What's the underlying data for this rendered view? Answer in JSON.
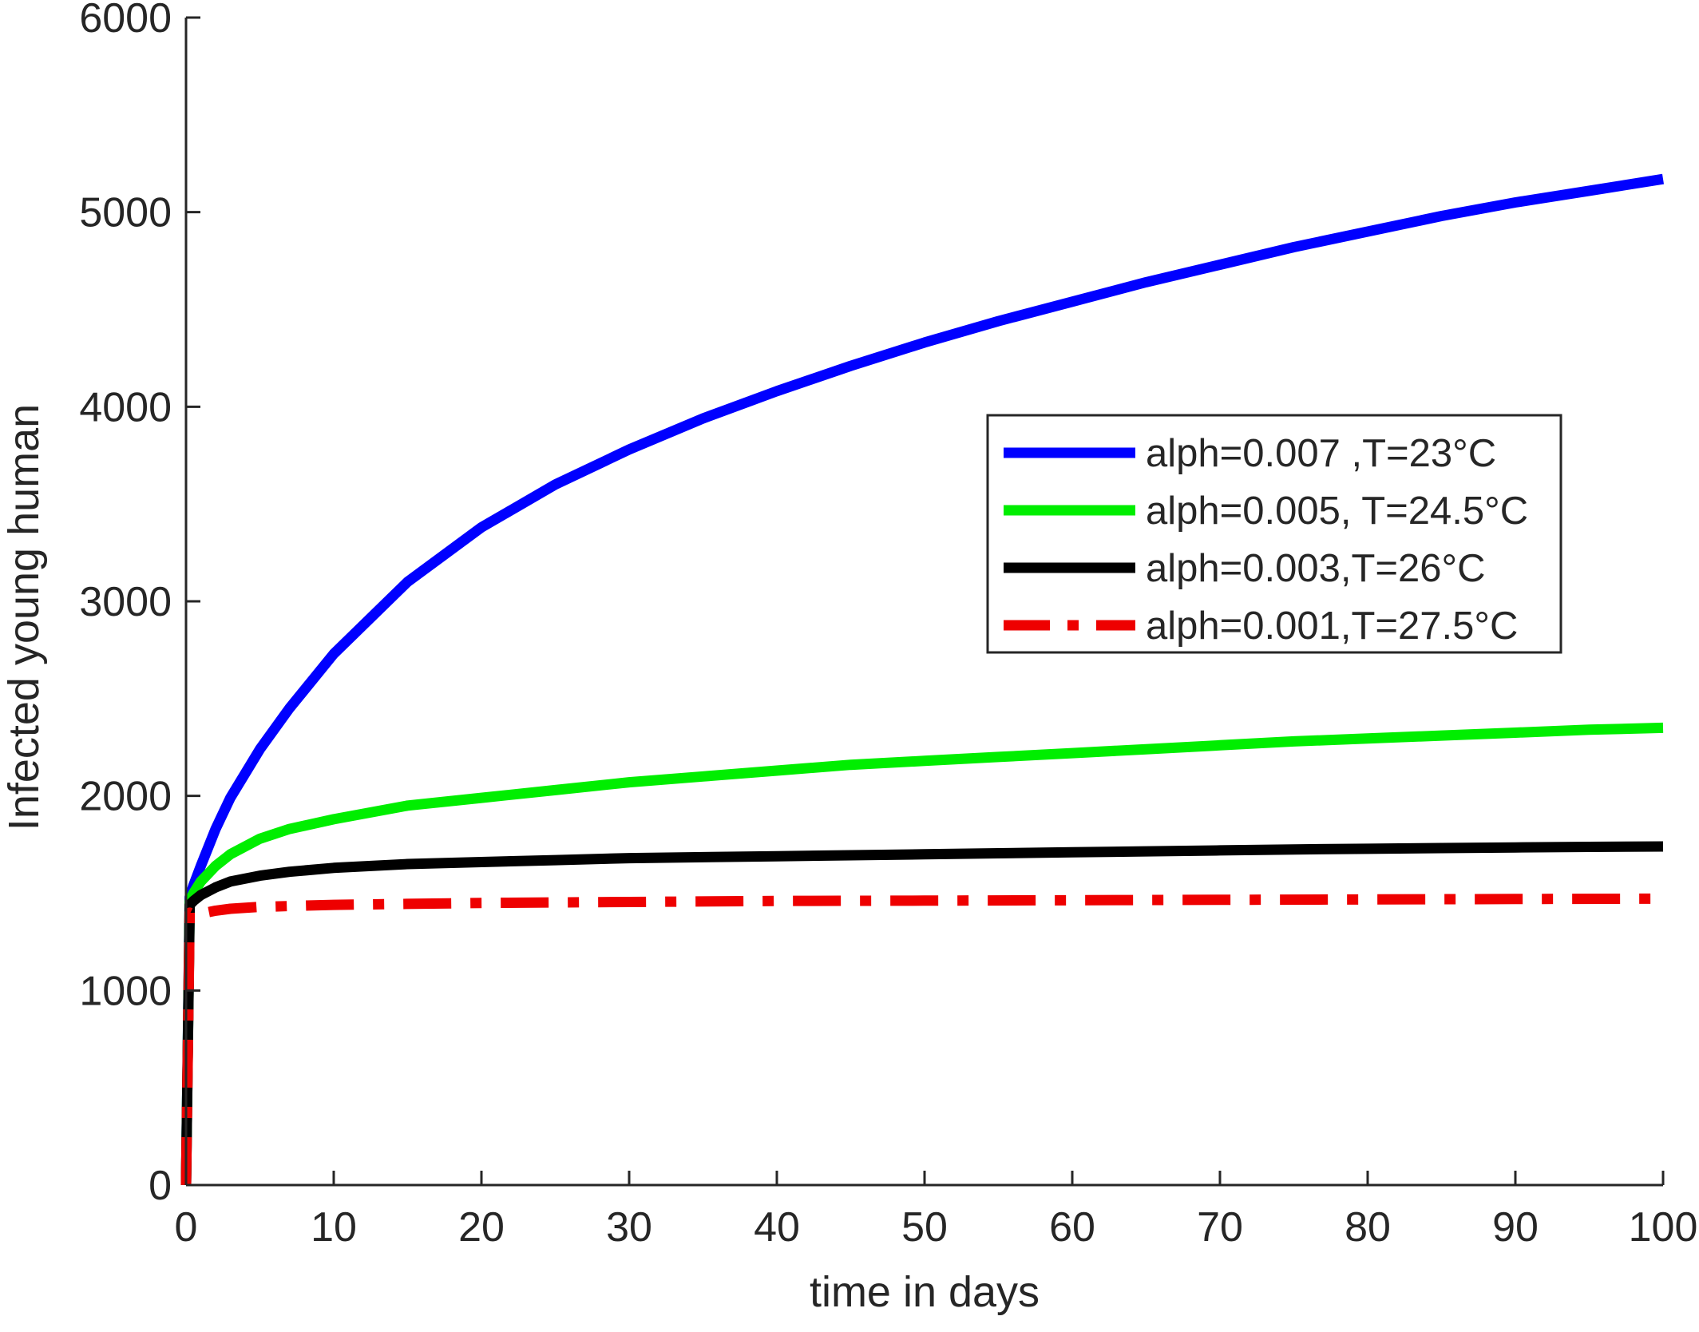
{
  "chart_data": {
    "type": "line",
    "xlabel": "time in days",
    "ylabel": "Infected young human",
    "xlim": [
      0,
      100
    ],
    "ylim": [
      0,
      6000
    ],
    "x_ticks": [
      0,
      10,
      20,
      30,
      40,
      50,
      60,
      70,
      80,
      90,
      100
    ],
    "y_ticks": [
      0,
      1000,
      2000,
      3000,
      4000,
      5000,
      6000
    ],
    "grid": false,
    "legend_position": "upper-right",
    "series": [
      {
        "name": "alph=0.007 ,T=23°C",
        "color": "#0000ff",
        "style": "solid",
        "x": [
          0,
          0.25,
          0.5,
          1,
          2,
          3,
          5,
          7,
          10,
          15,
          20,
          25,
          30,
          35,
          40,
          45,
          50,
          55,
          60,
          65,
          70,
          75,
          80,
          85,
          90,
          95,
          100
        ],
        "y": [
          0,
          1480,
          1540,
          1640,
          1830,
          1990,
          2240,
          2450,
          2730,
          3100,
          3380,
          3600,
          3780,
          3940,
          4080,
          4210,
          4330,
          4440,
          4540,
          4640,
          4730,
          4820,
          4900,
          4980,
          5050,
          5110,
          5170
        ]
      },
      {
        "name": "alph=0.005, T=24.5°C",
        "color": "#00ee00",
        "style": "solid",
        "x": [
          0,
          0.25,
          0.5,
          1,
          2,
          3,
          5,
          7,
          10,
          15,
          20,
          25,
          30,
          35,
          40,
          45,
          50,
          55,
          60,
          65,
          70,
          75,
          80,
          85,
          90,
          95,
          100
        ],
        "y": [
          0,
          1460,
          1500,
          1560,
          1640,
          1700,
          1780,
          1830,
          1880,
          1950,
          1990,
          2030,
          2070,
          2100,
          2130,
          2160,
          2180,
          2200,
          2220,
          2240,
          2260,
          2280,
          2295,
          2310,
          2325,
          2340,
          2350
        ]
      },
      {
        "name": "alph=0.003,T=26°C",
        "color": "#000000",
        "style": "solid",
        "x": [
          0,
          0.25,
          0.5,
          1,
          2,
          3,
          5,
          7,
          10,
          15,
          20,
          25,
          30,
          35,
          40,
          45,
          50,
          55,
          60,
          65,
          70,
          75,
          80,
          85,
          90,
          95,
          100
        ],
        "y": [
          0,
          1440,
          1460,
          1490,
          1530,
          1560,
          1590,
          1610,
          1630,
          1650,
          1660,
          1670,
          1680,
          1685,
          1690,
          1695,
          1700,
          1705,
          1710,
          1715,
          1720,
          1725,
          1728,
          1732,
          1735,
          1738,
          1740
        ]
      },
      {
        "name": "alph=0.001,T=27.5°C",
        "color": "#ee0000",
        "style": "dashdot",
        "x": [
          0,
          0.25,
          0.5,
          1,
          2,
          3,
          5,
          10,
          20,
          30,
          40,
          50,
          60,
          70,
          80,
          90,
          100
        ],
        "y": [
          0,
          1400,
          1390,
          1395,
          1410,
          1420,
          1430,
          1440,
          1450,
          1455,
          1460,
          1462,
          1464,
          1466,
          1468,
          1470,
          1472
        ]
      }
    ]
  }
}
